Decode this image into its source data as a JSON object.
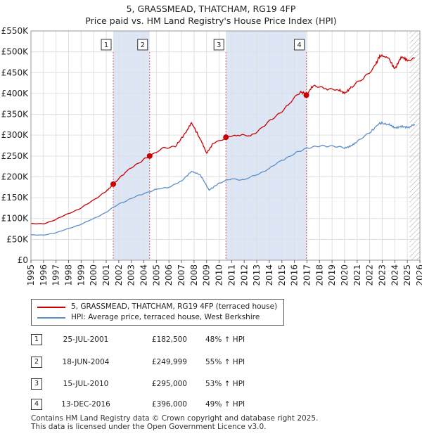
{
  "title_line1": "5, GRASSMEAD, THATCHAM, RG19 4FP",
  "title_line2": "Price paid vs. HM Land Registry's House Price Index (HPI)",
  "colors": {
    "property": "#cc0000",
    "hpi": "#5b8fc9",
    "shade": "#dde6f5",
    "grid": "#e0e0e0"
  },
  "chart_data": {
    "type": "line",
    "ylabel": "",
    "xlabel": "",
    "ylim": [
      0,
      550000
    ],
    "xlim": [
      1995,
      2026
    ],
    "y_ticks": [
      0,
      50000,
      100000,
      150000,
      200000,
      250000,
      300000,
      350000,
      400000,
      450000,
      500000,
      550000
    ],
    "y_tick_labels": [
      "£0",
      "£50K",
      "£100K",
      "£150K",
      "£200K",
      "£250K",
      "£300K",
      "£350K",
      "£400K",
      "£450K",
      "£500K",
      "£550K"
    ],
    "x_tick_labels": [
      "1995",
      "1996",
      "1997",
      "1998",
      "1999",
      "2000",
      "2001",
      "2002",
      "2003",
      "2004",
      "2005",
      "2006",
      "2007",
      "2008",
      "2009",
      "2010",
      "2011",
      "2012",
      "2013",
      "2014",
      "2015",
      "2016",
      "2017",
      "2018",
      "2019",
      "2020",
      "2021",
      "2022",
      "2023",
      "2024",
      "2025",
      "2026"
    ],
    "grid": true,
    "shaded_periods": [
      [
        2001.56,
        2004.46
      ],
      [
        2010.54,
        2016.95
      ]
    ],
    "future_hatch_from": 2025.0,
    "series": [
      {
        "name": "5, GRASSMEAD, THATCHAM, RG19 4FP (terraced house)",
        "x": [
          1995.0,
          1996.0,
          1997.0,
          1998.0,
          1999.0,
          2000.0,
          2001.0,
          2001.56,
          2002.5,
          2003.5,
          2004.46,
          2005.5,
          2006.5,
          2007.3,
          2007.8,
          2008.5,
          2009.0,
          2009.5,
          2010.54,
          2011.5,
          2012.5,
          2013.5,
          2014.5,
          2015.5,
          2016.5,
          2016.95,
          2017.5,
          2018.5,
          2019.5,
          2020.0,
          2020.5,
          2021.5,
          2022.5,
          2022.8,
          2023.5,
          2024.0,
          2024.5,
          2025.0,
          2025.6
        ],
        "values": [
          88000,
          87000,
          98000,
          112000,
          125000,
          145000,
          165000,
          182500,
          210000,
          232000,
          249999,
          270000,
          272000,
          305000,
          330000,
          290000,
          257000,
          280000,
          295000,
          300000,
          298000,
          320000,
          345000,
          372000,
          405000,
          396000,
          418000,
          412000,
          408000,
          400000,
          416000,
          435000,
          470000,
          492000,
          485000,
          460000,
          488000,
          478000,
          485000
        ]
      },
      {
        "name": "HPI: Average price, terraced house, West Berkshire",
        "x": [
          1995.0,
          1996.0,
          1997.0,
          1998.0,
          1999.0,
          2000.0,
          2001.0,
          2002.0,
          2003.0,
          2004.0,
          2005.0,
          2006.0,
          2007.0,
          2007.8,
          2008.5,
          2009.2,
          2010.0,
          2011.0,
          2012.0,
          2013.0,
          2014.0,
          2015.0,
          2016.0,
          2017.0,
          2018.0,
          2019.0,
          2020.0,
          2020.5,
          2021.0,
          2022.0,
          2022.8,
          2023.5,
          2024.0,
          2024.5,
          2025.0,
          2025.6
        ],
        "values": [
          61000,
          60000,
          66000,
          76000,
          86000,
          100000,
          115000,
          135000,
          148000,
          160000,
          170000,
          175000,
          190000,
          213000,
          205000,
          168000,
          185000,
          195000,
          193000,
          205000,
          220000,
          240000,
          255000,
          270000,
          273000,
          275000,
          268000,
          275000,
          285000,
          305000,
          330000,
          325000,
          318000,
          322000,
          318000,
          325000
        ]
      }
    ],
    "sales": [
      {
        "id": "1",
        "x": 2001.56,
        "value": 182500
      },
      {
        "id": "2",
        "x": 2004.46,
        "value": 249999
      },
      {
        "id": "3",
        "x": 2010.54,
        "value": 295000
      },
      {
        "id": "4",
        "x": 2016.95,
        "value": 396000
      }
    ]
  },
  "legend": {
    "property": "5, GRASSMEAD, THATCHAM, RG19 4FP (terraced house)",
    "hpi": "HPI: Average price, terraced house, West Berkshire"
  },
  "transactions": [
    {
      "num": "1",
      "date": "25-JUL-2001",
      "price": "£182,500",
      "hpi": "48% ↑ HPI"
    },
    {
      "num": "2",
      "date": "18-JUN-2004",
      "price": "£249,999",
      "hpi": "55% ↑ HPI"
    },
    {
      "num": "3",
      "date": "15-JUL-2010",
      "price": "£295,000",
      "hpi": "53% ↑ HPI"
    },
    {
      "num": "4",
      "date": "13-DEC-2016",
      "price": "£396,000",
      "hpi": "49% ↑ HPI"
    }
  ],
  "footer": {
    "line1": "Contains HM Land Registry data © Crown copyright and database right 2025.",
    "line2": "This data is licensed under the Open Government Licence v3.0."
  }
}
